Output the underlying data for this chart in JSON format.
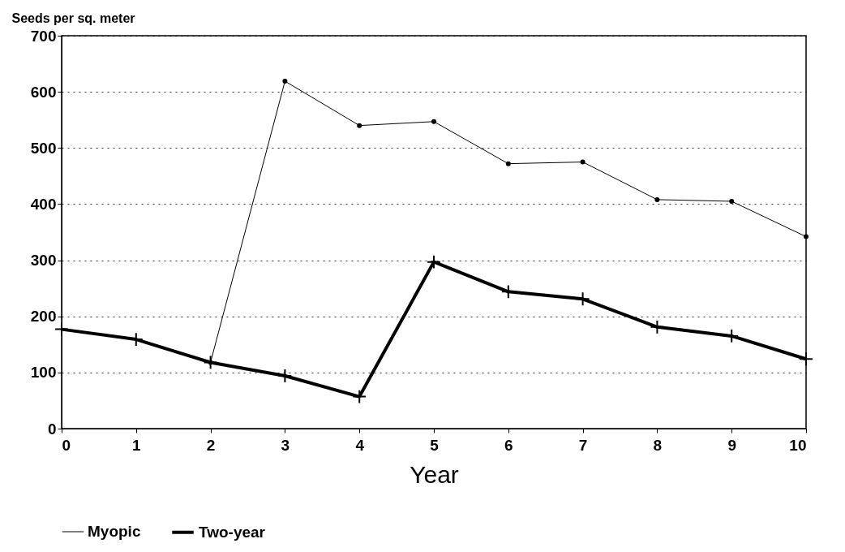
{
  "chart_data": {
    "type": "line",
    "xlabel": "Year",
    "ylabel": "Seeds per sq. meter",
    "x": [
      0,
      1,
      2,
      3,
      4,
      5,
      6,
      7,
      8,
      9,
      10
    ],
    "series": [
      {
        "name": "Myopic",
        "color": "#000000",
        "marker": "circle",
        "values": [
          null,
          null,
          118,
          619,
          540,
          547,
          472,
          475,
          408,
          405,
          342
        ]
      },
      {
        "name": "Two-year",
        "color": "#000000",
        "marker": "cross",
        "values": [
          177,
          159,
          118,
          94,
          57,
          297,
          244,
          231,
          181,
          165,
          124
        ]
      }
    ],
    "xlim": [
      0,
      10
    ],
    "xticks": [
      0,
      1,
      2,
      3,
      4,
      5,
      6,
      7,
      8,
      9,
      10
    ],
    "ylim": [
      0,
      700
    ],
    "yticks": [
      0,
      100,
      200,
      300,
      400,
      500,
      600,
      700
    ],
    "grid": "y",
    "legend": "bottom",
    "line_style": "solid"
  }
}
